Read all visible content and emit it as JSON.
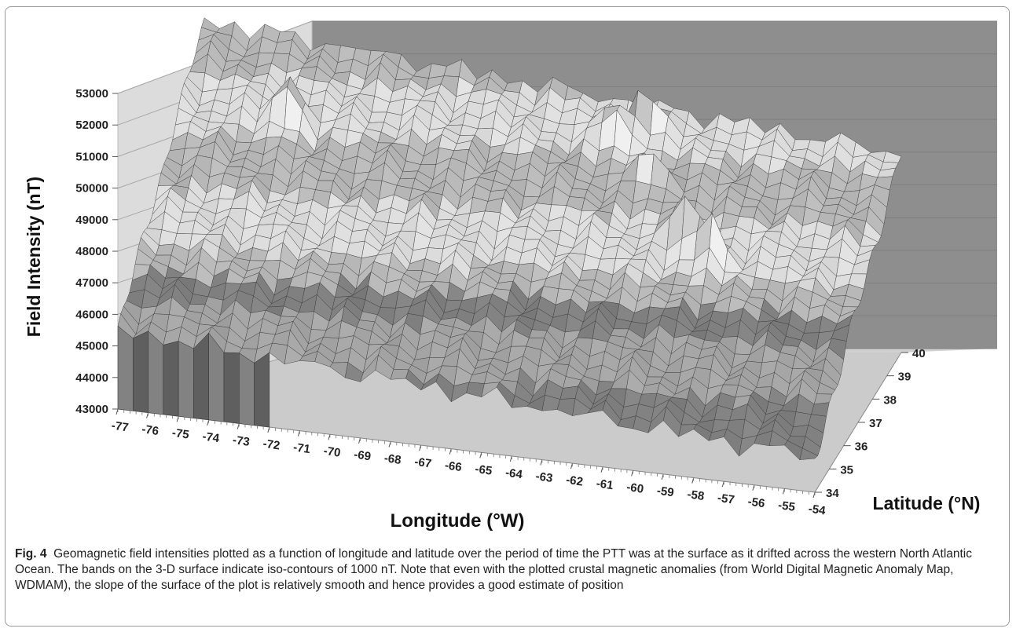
{
  "chart_data": {
    "type": "surface",
    "yaxis_title": "Field Intensity (nT)",
    "xaxis_title": "Longitude (°W)",
    "zaxis_title": "Latitude (°N)",
    "y_ticks": [
      "43000",
      "44000",
      "45000",
      "46000",
      "47000",
      "48000",
      "49000",
      "50000",
      "51000",
      "52000",
      "53000"
    ],
    "x_ticks": [
      "-77",
      "-76",
      "-75",
      "-74",
      "-73",
      "-72",
      "-71",
      "-70",
      "-69",
      "-68",
      "-67",
      "-66",
      "-65",
      "-64",
      "-63",
      "-62",
      "-61",
      "-60",
      "-59",
      "-58",
      "-57",
      "-56",
      "-55",
      "-54"
    ],
    "z_ticks": [
      "34",
      "35",
      "36",
      "37",
      "38",
      "39",
      "40"
    ],
    "ylim": [
      43000,
      53000
    ],
    "xlim": [
      -77,
      -54
    ],
    "zlim": [
      34,
      40
    ],
    "contour_interval_nT": 1000,
    "grid": true
  },
  "caption": {
    "label": "Fig. 4",
    "text": "Geomagnetic field intensities plotted as a function of longitude and latitude over the period of time the PTT was at the surface as it drifted across the western North Atlantic Ocean. The bands on the 3-D surface indicate iso-contours of 1000 nT. Note that even with the plotted crustal magnetic anomalies (from World Digital Magnetic Anomaly Map, WDMAM), the slope of the surface of the plot is relatively smooth and hence provides a good estimate of position"
  },
  "colors": {
    "back_wall": "#8c8c8c",
    "side_wall": "#d8d8d8",
    "floor": "#cfcfcf",
    "surface_light": "#e6e6e6",
    "surface_dark": "#6a6a6a"
  }
}
